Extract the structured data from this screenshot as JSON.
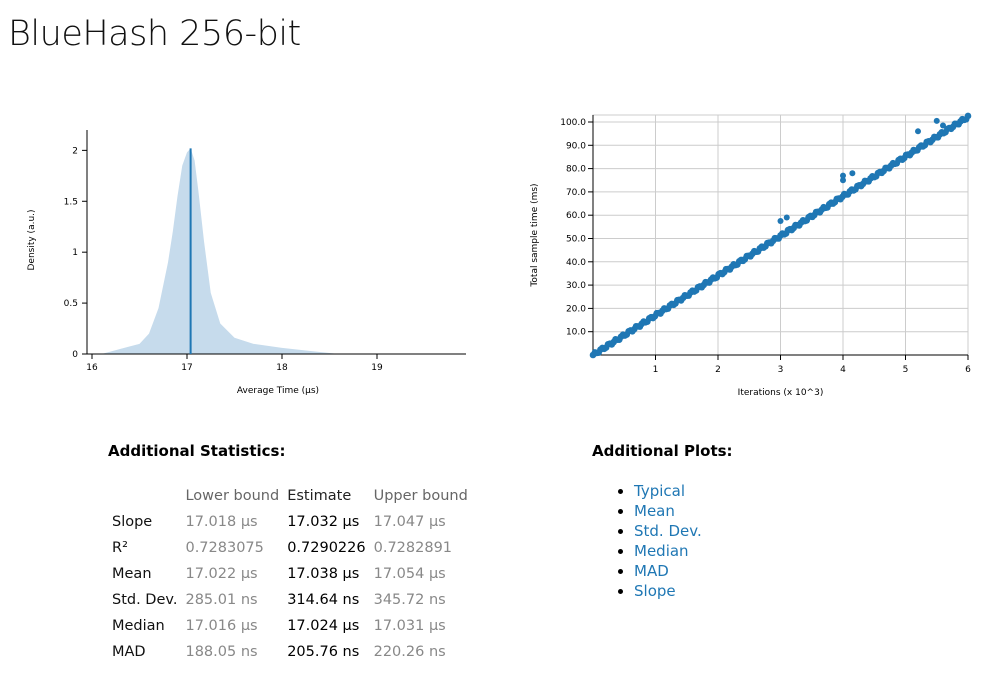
{
  "page_title": "BlueHash 256-bit",
  "chart_data": [
    {
      "type": "area",
      "name": "pdf",
      "xlabel": "Average Time (µs)",
      "ylabel": "Density (a.u.)",
      "xlim": [
        16,
        20
      ],
      "ylim": [
        0,
        2.2
      ],
      "x_ticks": [
        "16",
        "17",
        "18",
        "19"
      ],
      "y_ticks": [
        "0",
        "0.5",
        "1",
        "1.5",
        "2"
      ],
      "point_estimate": 17.038,
      "x": [
        16.1,
        16.3,
        16.5,
        16.6,
        16.7,
        16.8,
        16.85,
        16.9,
        16.95,
        17.0,
        17.038,
        17.08,
        17.12,
        17.18,
        17.25,
        17.35,
        17.5,
        17.7,
        18.0,
        18.3,
        18.6
      ],
      "y": [
        0.0,
        0.05,
        0.1,
        0.2,
        0.45,
        0.9,
        1.2,
        1.55,
        1.85,
        1.98,
        2.02,
        1.9,
        1.6,
        1.1,
        0.6,
        0.3,
        0.16,
        0.1,
        0.06,
        0.03,
        0.0
      ]
    },
    {
      "type": "scatter",
      "name": "regression",
      "xlabel": "Iterations (x 10^3)",
      "ylabel": "Total sample time (ms)",
      "xlim": [
        0,
        6
      ],
      "ylim": [
        0,
        103
      ],
      "x_ticks": [
        "1",
        "2",
        "3",
        "4",
        "5",
        "6"
      ],
      "y_ticks": [
        "10.0",
        "20.0",
        "30.0",
        "40.0",
        "50.0",
        "60.0",
        "70.0",
        "80.0",
        "90.0",
        "100.0"
      ],
      "slope_ms_per_kiter": 17.032,
      "outliers": [
        [
          3.0,
          57.5
        ],
        [
          3.1,
          59.0
        ],
        [
          4.0,
          75.0
        ],
        [
          4.0,
          77.0
        ],
        [
          4.15,
          78.0
        ],
        [
          5.2,
          96.0
        ],
        [
          5.5,
          100.5
        ],
        [
          5.6,
          98.5
        ]
      ],
      "grid": true
    }
  ],
  "stats": {
    "title": "Additional Statistics:",
    "headers": [
      "",
      "Lower bound",
      "Estimate",
      "Upper bound"
    ],
    "rows": [
      [
        "Slope",
        "17.018 µs",
        "17.032 µs",
        "17.047 µs"
      ],
      [
        "R²",
        "0.7283075",
        "0.7290226",
        "0.7282891"
      ],
      [
        "Mean",
        "17.022 µs",
        "17.038 µs",
        "17.054 µs"
      ],
      [
        "Std. Dev.",
        "285.01 ns",
        "314.64 ns",
        "345.72 ns"
      ],
      [
        "Median",
        "17.016 µs",
        "17.024 µs",
        "17.031 µs"
      ],
      [
        "MAD",
        "188.05 ns",
        "205.76 ns",
        "220.26 ns"
      ]
    ]
  },
  "plots": {
    "title": "Additional Plots:",
    "links": [
      "Typical",
      "Mean",
      "Std. Dev.",
      "Median",
      "MAD",
      "Slope"
    ]
  },
  "colors": {
    "accent": "#1f77b4",
    "fill": "#c6dbec"
  }
}
